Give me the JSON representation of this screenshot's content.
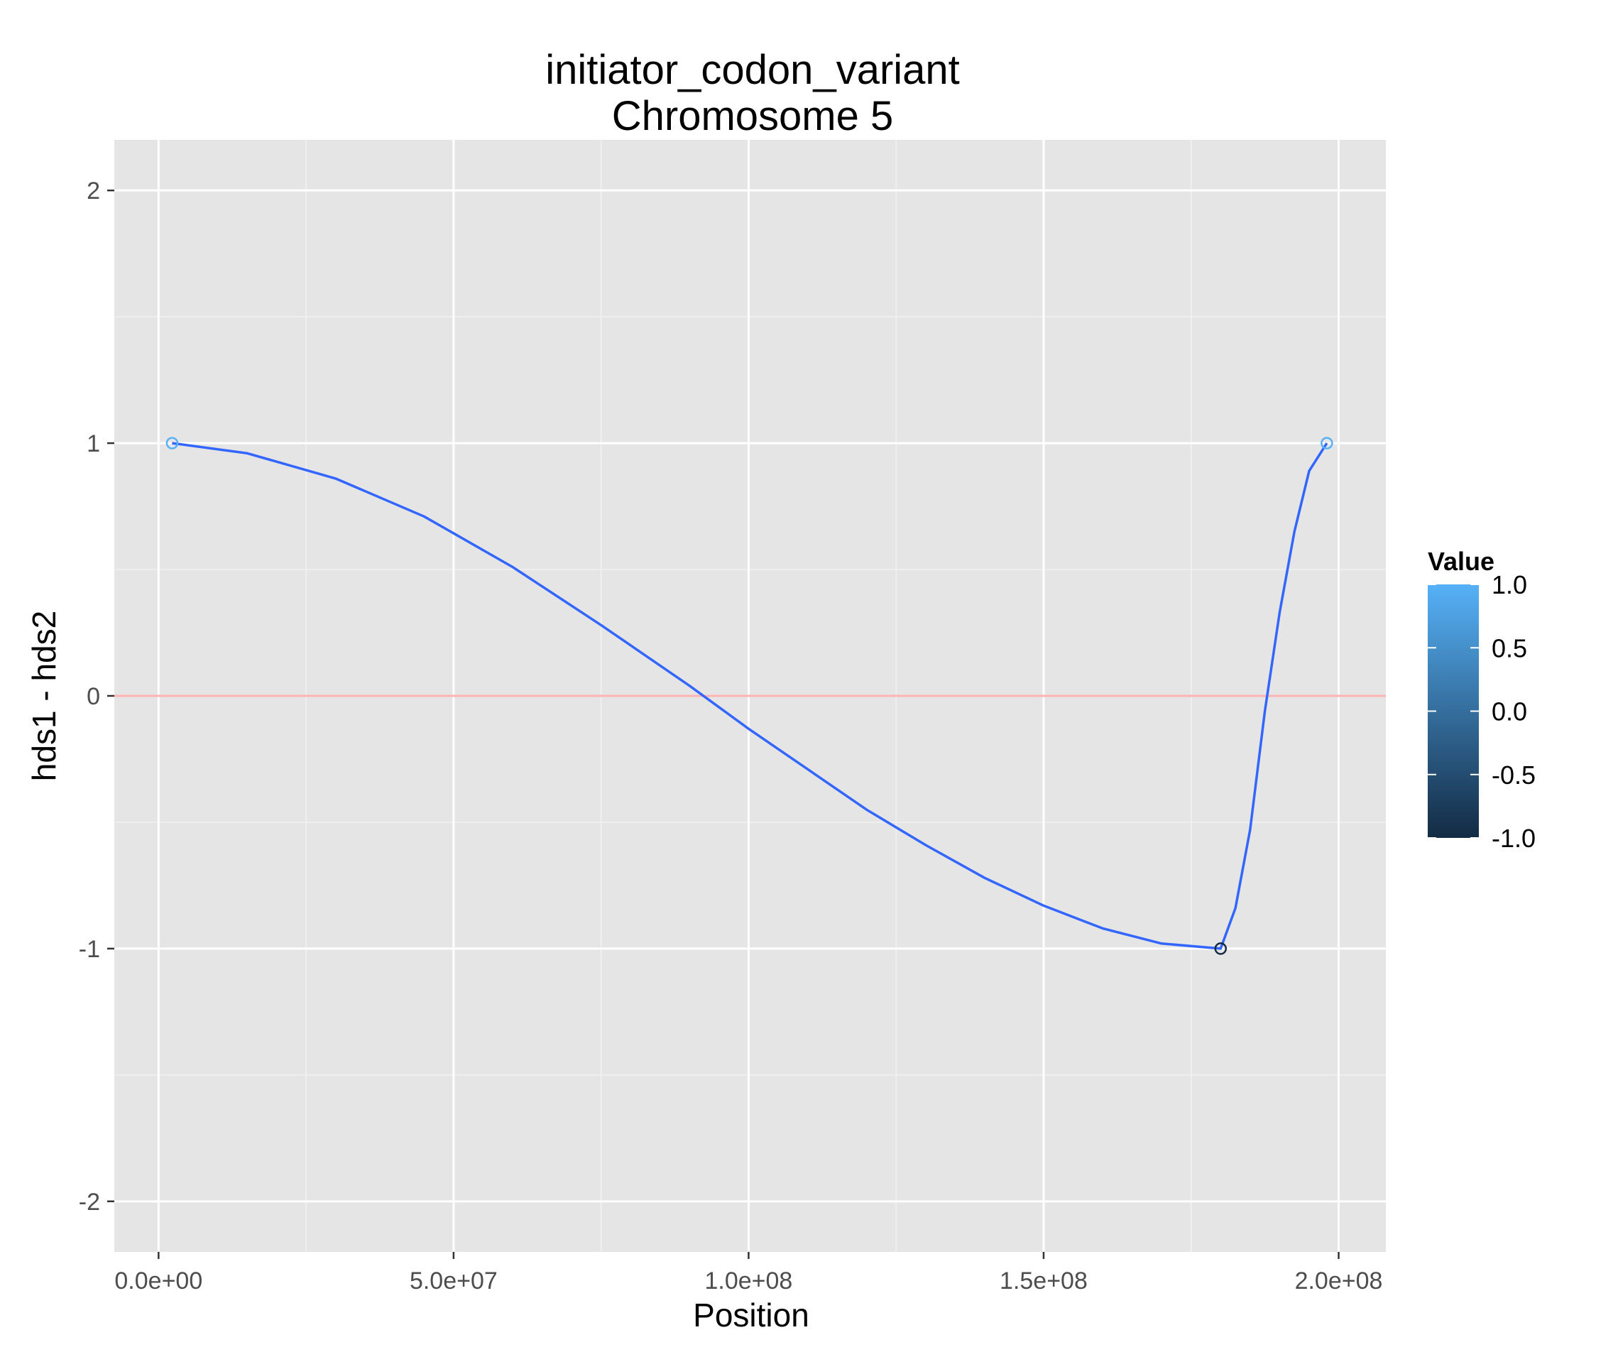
{
  "chart_data": {
    "type": "line",
    "title": "initiator_codon_variant",
    "subtitle": "Chromosome 5",
    "xlabel": "Position",
    "ylabel": "hds1 - hds2",
    "xlim": [
      -7500000,
      208000000
    ],
    "ylim": [
      -2.2,
      2.2
    ],
    "x_ticks": [
      0,
      50000000,
      100000000,
      150000000,
      200000000
    ],
    "x_tick_labels": [
      "0.0e+00",
      "5.0e+07",
      "1.0e+08",
      "1.5e+08",
      "2.0e+08"
    ],
    "y_ticks": [
      -2,
      -1,
      0,
      1,
      2
    ],
    "y_tick_labels": [
      "-2",
      "-1",
      "0",
      "1",
      "2"
    ],
    "grid": true,
    "reference_line": {
      "y": 0,
      "color": "#ffb3b3"
    },
    "series": [
      {
        "points": [
          {
            "x": 2300000,
            "y": 1.0,
            "value": 1.0
          },
          {
            "x": 180000000,
            "y": -1.0,
            "value": -1.0
          },
          {
            "x": 198000000,
            "y": 1.0,
            "value": 1.0
          }
        ],
        "smooth_line": {
          "color": "#3366ff",
          "x": [
            2300000,
            15000000,
            30000000,
            45000000,
            60000000,
            75000000,
            90000000,
            100000000,
            110000000,
            120000000,
            130000000,
            140000000,
            150000000,
            160000000,
            170000000,
            180000000,
            182500000,
            185000000,
            187500000,
            190000000,
            192500000,
            195000000,
            198000000
          ],
          "y": [
            1.0,
            0.96,
            0.86,
            0.71,
            0.51,
            0.28,
            0.04,
            -0.13,
            -0.29,
            -0.45,
            -0.59,
            -0.72,
            -0.83,
            -0.92,
            -0.98,
            -1.0,
            -0.84,
            -0.53,
            -0.06,
            0.33,
            0.65,
            0.89,
            1.0
          ]
        }
      }
    ],
    "legend": {
      "title": "Value",
      "placement": "right",
      "range": [
        -1.0,
        1.0
      ],
      "labels": [
        "1.0",
        "0.5",
        "0.0",
        "-0.5",
        "-1.0"
      ],
      "low_color": "#132b43",
      "high_color": "#56b1f7"
    },
    "colors": {
      "panel": "#e5e5e5",
      "grid_major": "#ffffff",
      "grid_minor": "#f2f2f2"
    }
  }
}
